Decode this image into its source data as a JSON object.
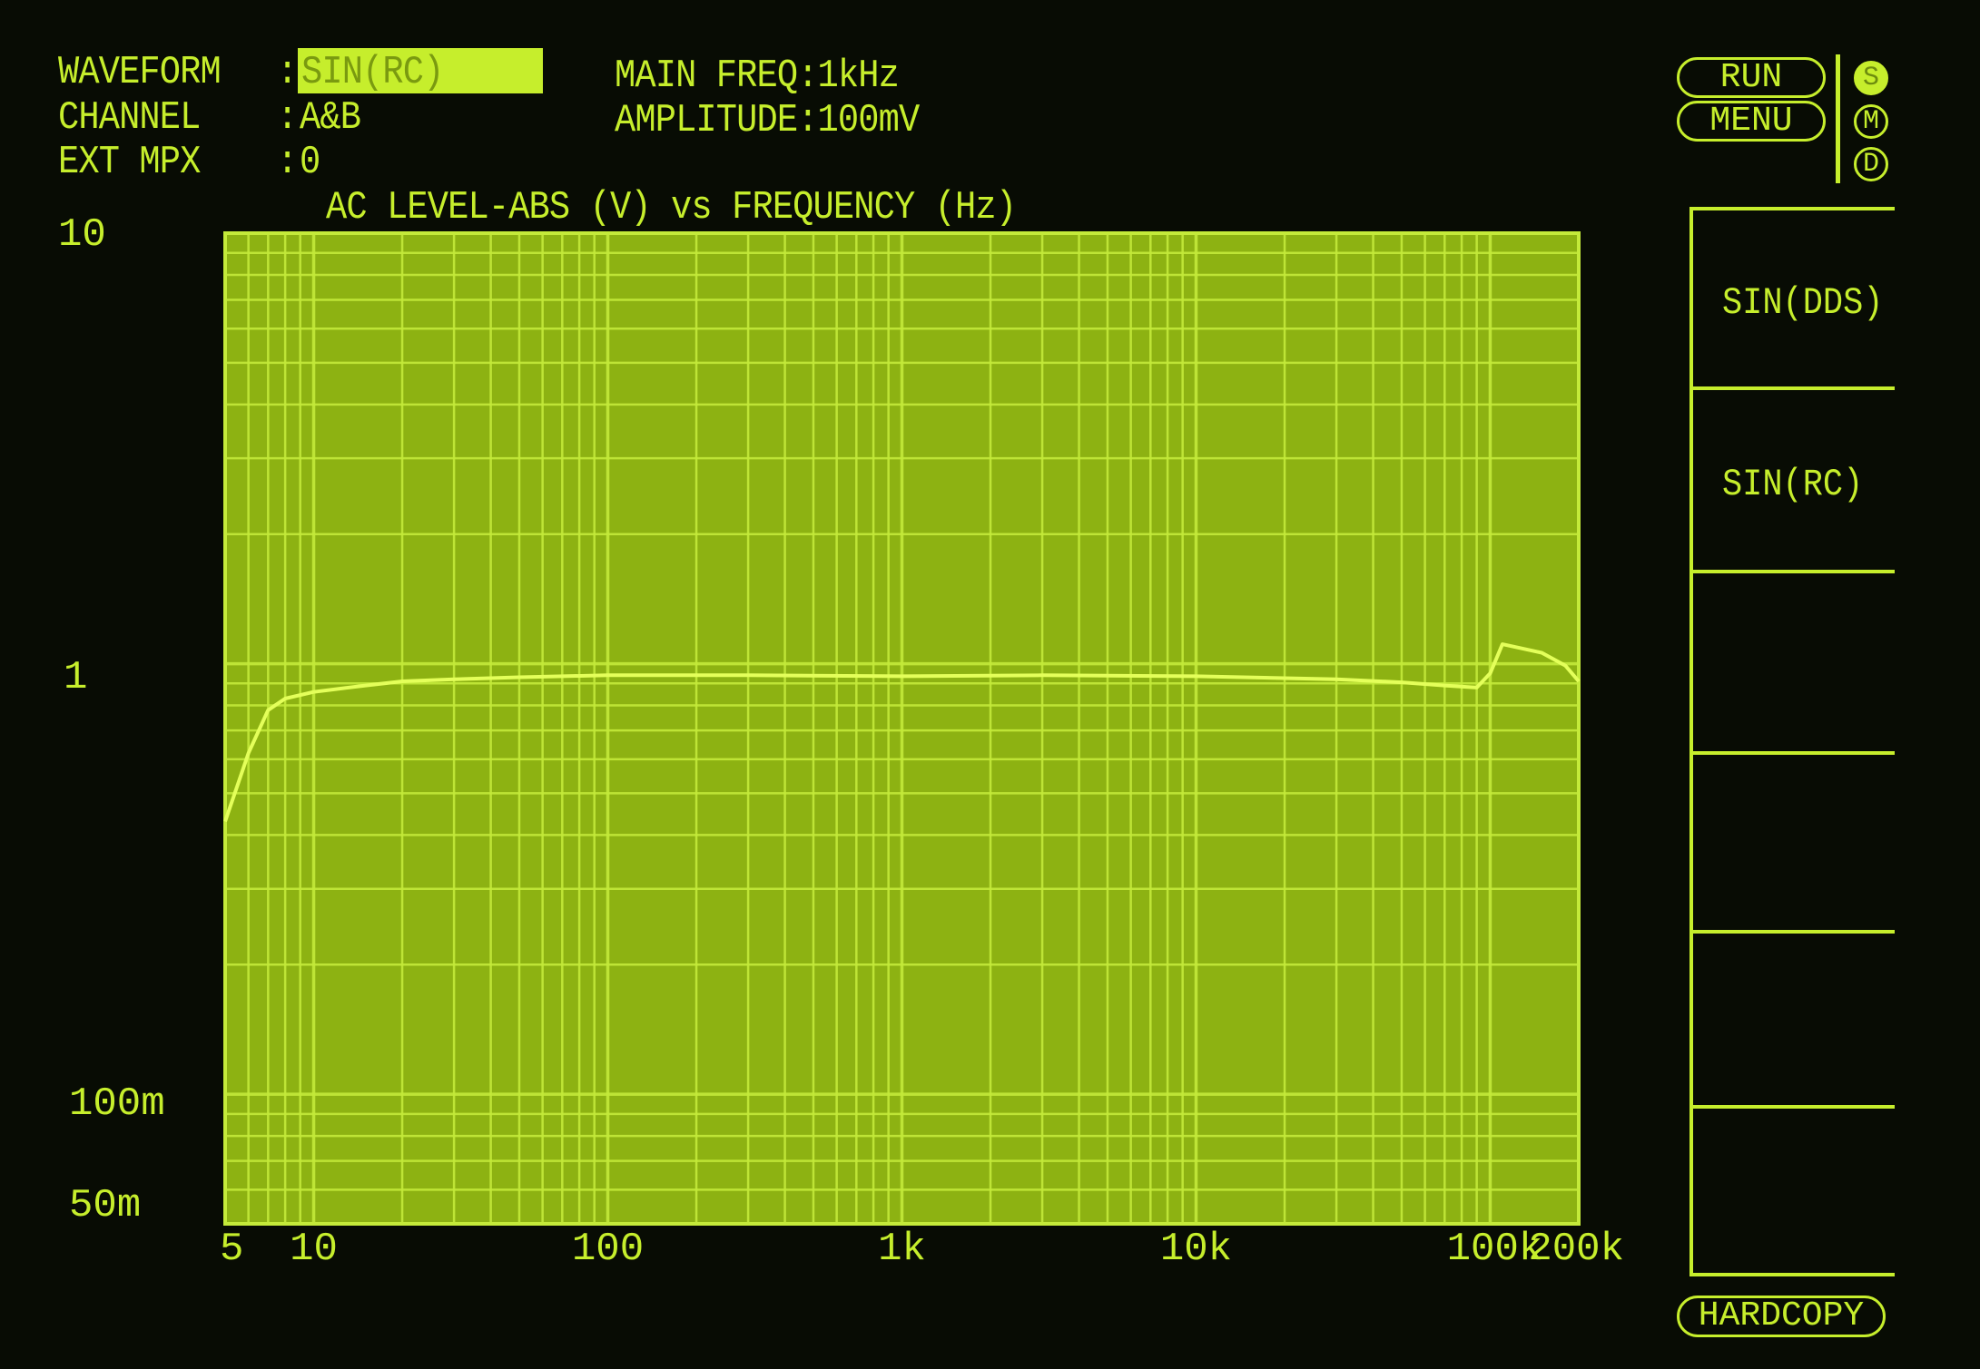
{
  "header": {
    "waveform_label": "WAVEFORM",
    "waveform_value": "SIN(RC)",
    "channel_label": "CHANNEL",
    "channel_value": "A&B",
    "ext_mpx_label": "EXT MPX",
    "ext_mpx_value": "0",
    "colon": ":",
    "main_freq": "MAIN FREQ:1kHz",
    "amplitude": "AMPLITUDE:100mV"
  },
  "controls": {
    "run": "RUN",
    "menu": "MENU",
    "indicators": [
      "S",
      "M",
      "D"
    ],
    "hardcopy": "HARDCOPY"
  },
  "softkeys": [
    "SIN(DDS)",
    "SIN(RC)",
    "",
    "",
    "",
    ""
  ],
  "colors": {
    "phosphor": "#c6ee2c",
    "plot_bg": "#8db212",
    "grid": "#c4ea3a",
    "background": "#080c04"
  },
  "chart_data": {
    "type": "line",
    "title": "AC LEVEL-ABS (V) vs FREQUENCY (Hz)",
    "xscale": "log",
    "yscale": "log",
    "xlim": [
      5,
      200000
    ],
    "ylim": [
      0.05,
      10
    ],
    "grid": true,
    "x_tick_labels": [
      {
        "value": 5,
        "label": "5"
      },
      {
        "value": 10,
        "label": "10"
      },
      {
        "value": 100,
        "label": "100"
      },
      {
        "value": 1000,
        "label": "1k"
      },
      {
        "value": 10000,
        "label": "10k"
      },
      {
        "value": 100000,
        "label": "100k"
      },
      {
        "value": 200000,
        "label": "200k"
      }
    ],
    "y_tick_labels": [
      {
        "value": 10,
        "label": "10"
      },
      {
        "value": 1,
        "label": "1"
      },
      {
        "value": 0.1,
        "label": "100m"
      },
      {
        "value": 0.05,
        "label": "50m"
      }
    ],
    "series": [
      {
        "x": [
          5,
          6,
          7,
          8,
          10,
          15,
          20,
          30,
          50,
          100,
          300,
          1000,
          3000,
          10000,
          30000,
          50000,
          70000,
          90000,
          100000,
          110000,
          150000,
          180000,
          200000
        ],
        "y": [
          0.43,
          0.62,
          0.78,
          0.83,
          0.86,
          0.89,
          0.91,
          0.92,
          0.93,
          0.94,
          0.94,
          0.935,
          0.94,
          0.935,
          0.92,
          0.905,
          0.89,
          0.88,
          0.95,
          1.11,
          1.06,
          0.99,
          0.91
        ]
      }
    ]
  }
}
